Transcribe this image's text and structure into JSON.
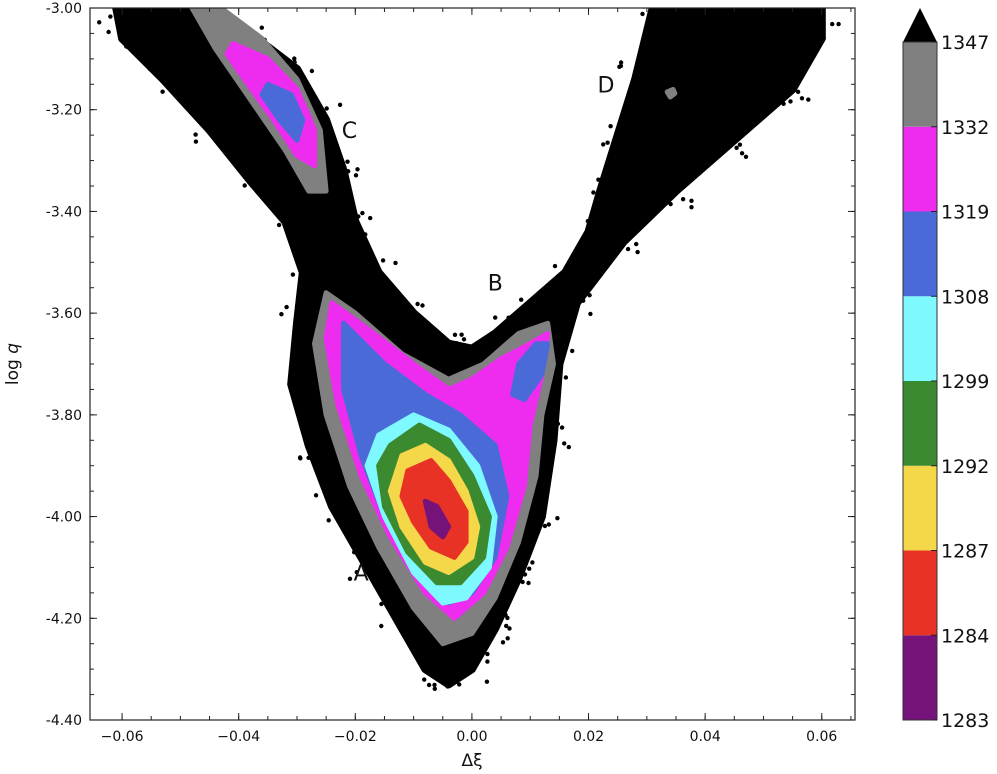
{
  "chart_data": {
    "type": "scatter",
    "xlabel": "Δξ",
    "ylabel_prefix": "log ",
    "ylabel_var": "q",
    "xlim": [
      -0.0655,
      0.0657
    ],
    "ylim": [
      -4.4,
      -3.0
    ],
    "xticks": [
      -0.06,
      -0.04,
      -0.02,
      0.0,
      0.02,
      0.04,
      0.06
    ],
    "xtick_labels": [
      "−0.06",
      "−0.04",
      "−0.02",
      "0.00",
      "0.02",
      "0.04",
      "0.06"
    ],
    "yticks": [
      -3.0,
      -3.2,
      -3.4,
      -3.6,
      -3.8,
      -4.0,
      -4.2,
      -4.4
    ],
    "ytick_labels": [
      "-3.00",
      "-3.20",
      "-3.40",
      "-3.60",
      "-3.80",
      "-4.00",
      "-4.20",
      "-4.40"
    ],
    "grid": false,
    "colorbar": {
      "levels": [
        1283,
        1284,
        1287,
        1292,
        1299,
        1308,
        1319,
        1332,
        1347
      ],
      "labels": [
        "1283",
        "1284",
        "1287",
        "1292",
        "1299",
        "1308",
        "1319",
        "1332",
        "1347"
      ],
      "colors": [
        "#76137a",
        "#e83226",
        "#f5d84a",
        "#3c8a30",
        "#7ef9ff",
        "#4a6ad8",
        "#ee2cf0",
        "#808080"
      ],
      "extend_color": "#000000",
      "extend": "max"
    },
    "annotations": [
      {
        "text": "A",
        "x": -0.019,
        "y": -4.11
      },
      {
        "text": "B",
        "x": 0.004,
        "y": -3.54
      },
      {
        "text": "C",
        "x": -0.021,
        "y": -3.24
      },
      {
        "text": "D",
        "x": 0.023,
        "y": -3.15
      }
    ],
    "regions": [
      {
        "level": ">1347",
        "color": "#000000",
        "points": [
          [
            -0.061,
            -3.0
          ],
          [
            -0.046,
            -3.0
          ],
          [
            -0.038,
            -3.05
          ],
          [
            -0.03,
            -3.12
          ],
          [
            -0.025,
            -3.22
          ],
          [
            -0.022,
            -3.32
          ],
          [
            -0.02,
            -3.42
          ],
          [
            -0.016,
            -3.52
          ],
          [
            -0.01,
            -3.6
          ],
          [
            -0.004,
            -3.66
          ],
          [
            0.0,
            -3.67
          ],
          [
            0.004,
            -3.64
          ],
          [
            0.01,
            -3.58
          ],
          [
            0.016,
            -3.52
          ],
          [
            0.02,
            -3.44
          ],
          [
            0.022,
            -3.36
          ],
          [
            0.025,
            -3.25
          ],
          [
            0.028,
            -3.14
          ],
          [
            0.031,
            -3.0
          ],
          [
            0.06,
            -3.0
          ],
          [
            0.06,
            -3.06
          ],
          [
            0.055,
            -3.16
          ],
          [
            0.045,
            -3.26
          ],
          [
            0.035,
            -3.36
          ],
          [
            0.026,
            -3.46
          ],
          [
            0.018,
            -3.58
          ],
          [
            0.015,
            -3.7
          ],
          [
            0.014,
            -3.85
          ],
          [
            0.012,
            -4.0
          ],
          [
            0.008,
            -4.12
          ],
          [
            0.004,
            -4.22
          ],
          [
            0.0,
            -4.3
          ],
          [
            -0.004,
            -4.33
          ],
          [
            -0.008,
            -4.3
          ],
          [
            -0.013,
            -4.2
          ],
          [
            -0.018,
            -4.1
          ],
          [
            -0.024,
            -3.98
          ],
          [
            -0.028,
            -3.86
          ],
          [
            -0.031,
            -3.74
          ],
          [
            -0.03,
            -3.62
          ],
          [
            -0.029,
            -3.52
          ],
          [
            -0.032,
            -3.42
          ],
          [
            -0.038,
            -3.34
          ],
          [
            -0.045,
            -3.24
          ],
          [
            -0.053,
            -3.14
          ],
          [
            -0.06,
            -3.06
          ]
        ]
      },
      {
        "level": "1332-1347",
        "color": "#808080",
        "points": [
          [
            -0.025,
            -3.56
          ],
          [
            -0.02,
            -3.6
          ],
          [
            -0.012,
            -3.68
          ],
          [
            -0.004,
            -3.73
          ],
          [
            0.002,
            -3.7
          ],
          [
            0.008,
            -3.64
          ],
          [
            0.013,
            -3.62
          ],
          [
            0.014,
            -3.7
          ],
          [
            0.012,
            -3.8
          ],
          [
            0.011,
            -3.92
          ],
          [
            0.008,
            -4.05
          ],
          [
            0.004,
            -4.16
          ],
          [
            0.0,
            -4.23
          ],
          [
            -0.005,
            -4.25
          ],
          [
            -0.01,
            -4.18
          ],
          [
            -0.016,
            -4.06
          ],
          [
            -0.021,
            -3.94
          ],
          [
            -0.025,
            -3.8
          ],
          [
            -0.027,
            -3.66
          ]
        ]
      },
      {
        "level": "1332-1347",
        "color": "#808080",
        "points": [
          [
            -0.048,
            -3.0
          ],
          [
            -0.043,
            -3.0
          ],
          [
            -0.036,
            -3.06
          ],
          [
            -0.03,
            -3.14
          ],
          [
            -0.026,
            -3.24
          ],
          [
            -0.025,
            -3.36
          ],
          [
            -0.028,
            -3.36
          ],
          [
            -0.032,
            -3.28
          ],
          [
            -0.038,
            -3.18
          ],
          [
            -0.044,
            -3.08
          ]
        ]
      },
      {
        "level": "1332-1347",
        "color": "#808080",
        "points": [
          [
            0.0335,
            -3.165
          ],
          [
            0.0345,
            -3.16
          ],
          [
            0.0348,
            -3.168
          ],
          [
            0.034,
            -3.175
          ]
        ]
      },
      {
        "level": "1319-1332",
        "color": "#ee2cf0",
        "points": [
          [
            -0.024,
            -3.58
          ],
          [
            -0.018,
            -3.63
          ],
          [
            -0.01,
            -3.7
          ],
          [
            -0.004,
            -3.75
          ],
          [
            0.0,
            -3.73
          ],
          [
            0.005,
            -3.69
          ],
          [
            0.01,
            -3.66
          ],
          [
            0.013,
            -3.64
          ],
          [
            0.012,
            -3.72
          ],
          [
            0.01,
            -3.82
          ],
          [
            0.009,
            -3.94
          ],
          [
            0.006,
            -4.06
          ],
          [
            0.002,
            -4.15
          ],
          [
            -0.003,
            -4.2
          ],
          [
            -0.008,
            -4.15
          ],
          [
            -0.014,
            -4.04
          ],
          [
            -0.019,
            -3.92
          ],
          [
            -0.023,
            -3.78
          ],
          [
            -0.025,
            -3.65
          ]
        ]
      },
      {
        "level": "1319-1332",
        "color": "#ee2cf0",
        "points": [
          [
            -0.041,
            -3.07
          ],
          [
            -0.035,
            -3.1
          ],
          [
            -0.03,
            -3.16
          ],
          [
            -0.027,
            -3.24
          ],
          [
            -0.027,
            -3.31
          ],
          [
            -0.03,
            -3.29
          ],
          [
            -0.034,
            -3.22
          ],
          [
            -0.039,
            -3.14
          ],
          [
            -0.042,
            -3.09
          ]
        ]
      },
      {
        "level": "1308-1319",
        "color": "#4a6ad8",
        "points": [
          [
            -0.022,
            -3.62
          ],
          [
            -0.015,
            -3.7
          ],
          [
            -0.008,
            -3.76
          ],
          [
            -0.002,
            -3.8
          ],
          [
            0.004,
            -3.86
          ],
          [
            0.006,
            -3.96
          ],
          [
            0.004,
            -4.08
          ],
          [
            0.0,
            -4.15
          ],
          [
            -0.004,
            -4.17
          ],
          [
            -0.009,
            -4.11
          ],
          [
            -0.015,
            -4.0
          ],
          [
            -0.019,
            -3.88
          ],
          [
            -0.022,
            -3.75
          ]
        ]
      },
      {
        "level": "1308-1319",
        "color": "#4a6ad8",
        "points": [
          [
            0.007,
            -3.76
          ],
          [
            0.008,
            -3.7
          ],
          [
            0.011,
            -3.66
          ],
          [
            0.013,
            -3.66
          ],
          [
            0.012,
            -3.72
          ],
          [
            0.009,
            -3.77
          ]
        ]
      },
      {
        "level": "1308-1319",
        "color": "#4a6ad8",
        "points": [
          [
            -0.035,
            -3.15
          ],
          [
            -0.031,
            -3.17
          ],
          [
            -0.029,
            -3.22
          ],
          [
            -0.03,
            -3.26
          ],
          [
            -0.033,
            -3.22
          ],
          [
            -0.036,
            -3.17
          ]
        ]
      },
      {
        "level": "1299-1308",
        "color": "#7ef9ff",
        "points": [
          [
            -0.016,
            -3.84
          ],
          [
            -0.01,
            -3.8
          ],
          [
            -0.004,
            -3.83
          ],
          [
            0.001,
            -3.9
          ],
          [
            0.004,
            -4.0
          ],
          [
            0.003,
            -4.1
          ],
          [
            -0.001,
            -4.16
          ],
          [
            -0.005,
            -4.17
          ],
          [
            -0.01,
            -4.11
          ],
          [
            -0.015,
            -4.0
          ],
          [
            -0.018,
            -3.9
          ]
        ]
      },
      {
        "level": "1292-1299",
        "color": "#3c8a30",
        "points": [
          [
            -0.014,
            -3.86
          ],
          [
            -0.009,
            -3.82
          ],
          [
            -0.004,
            -3.85
          ],
          [
            0.0,
            -3.92
          ],
          [
            0.003,
            -4.0
          ],
          [
            0.002,
            -4.08
          ],
          [
            -0.002,
            -4.13
          ],
          [
            -0.006,
            -4.13
          ],
          [
            -0.011,
            -4.07
          ],
          [
            -0.015,
            -3.98
          ],
          [
            -0.016,
            -3.9
          ]
        ]
      },
      {
        "level": "1287-1292",
        "color": "#f5d84a",
        "points": [
          [
            -0.012,
            -3.88
          ],
          [
            -0.008,
            -3.86
          ],
          [
            -0.004,
            -3.89
          ],
          [
            -0.001,
            -3.95
          ],
          [
            0.001,
            -4.02
          ],
          [
            0.0,
            -4.08
          ],
          [
            -0.004,
            -4.11
          ],
          [
            -0.008,
            -4.09
          ],
          [
            -0.012,
            -4.02
          ],
          [
            -0.014,
            -3.95
          ]
        ]
      },
      {
        "level": "1284-1287",
        "color": "#e83226",
        "points": [
          [
            -0.011,
            -3.91
          ],
          [
            -0.007,
            -3.89
          ],
          [
            -0.004,
            -3.93
          ],
          [
            -0.001,
            -3.99
          ],
          [
            -0.001,
            -4.05
          ],
          [
            -0.003,
            -4.08
          ],
          [
            -0.007,
            -4.06
          ],
          [
            -0.01,
            -4.01
          ],
          [
            -0.012,
            -3.96
          ]
        ]
      },
      {
        "level": "1283-1284",
        "color": "#76137a",
        "points": [
          [
            -0.008,
            -3.97
          ],
          [
            -0.006,
            -3.98
          ],
          [
            -0.004,
            -4.02
          ],
          [
            -0.005,
            -4.04
          ],
          [
            -0.007,
            -4.02
          ]
        ]
      }
    ]
  }
}
